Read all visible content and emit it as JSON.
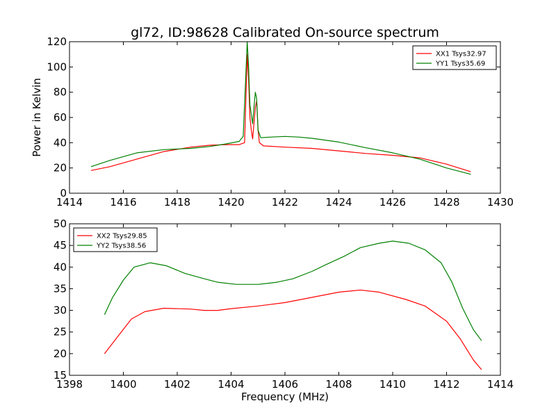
{
  "chart_data": [
    {
      "type": "line",
      "title": "gl72, ID:98628 Calibrated On-source spectrum",
      "xlabel": "",
      "ylabel": "Power in Kelvin",
      "xlim": [
        1414,
        1430
      ],
      "ylim": [
        0,
        120
      ],
      "xticks": [
        "1414",
        "1416",
        "1418",
        "1420",
        "1422",
        "1424",
        "1426",
        "1428",
        "1430"
      ],
      "yticks": [
        "0",
        "20",
        "40",
        "60",
        "80",
        "100",
        "120"
      ],
      "legend_position": "top-right",
      "series": [
        {
          "name": "XX1 Tsys32.97",
          "color": "#ff0000",
          "points": [
            [
              1414.8,
              18
            ],
            [
              1415.5,
              21
            ],
            [
              1416.5,
              27
            ],
            [
              1417.5,
              33
            ],
            [
              1418.5,
              36.5
            ],
            [
              1419.2,
              38
            ],
            [
              1419.8,
              38.5
            ],
            [
              1420.3,
              38.5
            ],
            [
              1420.5,
              40
            ],
            [
              1420.55,
              75
            ],
            [
              1420.6,
              110
            ],
            [
              1420.65,
              90
            ],
            [
              1420.7,
              60
            ],
            [
              1420.75,
              50
            ],
            [
              1420.8,
              43
            ],
            [
              1420.85,
              55
            ],
            [
              1420.9,
              68
            ],
            [
              1420.95,
              73
            ],
            [
              1421.0,
              50
            ],
            [
              1421.05,
              40
            ],
            [
              1421.2,
              37.5
            ],
            [
              1422,
              36.5
            ],
            [
              1423,
              35.5
            ],
            [
              1424,
              33.5
            ],
            [
              1425,
              31.5
            ],
            [
              1426,
              30
            ],
            [
              1427,
              28
            ],
            [
              1428,
              23
            ],
            [
              1428.9,
              17
            ]
          ]
        },
        {
          "name": "YY1 Tsys35.69",
          "color": "#008000",
          "points": [
            [
              1414.8,
              21
            ],
            [
              1415.5,
              26
            ],
            [
              1416.5,
              32
            ],
            [
              1417.5,
              34.5
            ],
            [
              1418.5,
              35.5
            ],
            [
              1419.2,
              37
            ],
            [
              1419.8,
              39
            ],
            [
              1420.3,
              41
            ],
            [
              1420.45,
              45
            ],
            [
              1420.55,
              95
            ],
            [
              1420.6,
              120
            ],
            [
              1420.65,
              100
            ],
            [
              1420.7,
              70
            ],
            [
              1420.8,
              55
            ],
            [
              1420.85,
              68
            ],
            [
              1420.9,
              80
            ],
            [
              1420.95,
              75
            ],
            [
              1421.0,
              50
            ],
            [
              1421.1,
              44
            ],
            [
              1421.5,
              44.5
            ],
            [
              1422,
              45
            ],
            [
              1422.5,
              44.5
            ],
            [
              1423,
              43.5
            ],
            [
              1424,
              40.5
            ],
            [
              1425,
              36
            ],
            [
              1426,
              32
            ],
            [
              1427,
              27
            ],
            [
              1428,
              20
            ],
            [
              1428.9,
              15
            ]
          ]
        }
      ]
    },
    {
      "type": "line",
      "title": "",
      "xlabel": "Frequency (MHz)",
      "ylabel": "",
      "xlim": [
        1398,
        1414
      ],
      "ylim": [
        15,
        50
      ],
      "xticks": [
        "1398",
        "1400",
        "1402",
        "1404",
        "1406",
        "1408",
        "1410",
        "1412",
        "1414"
      ],
      "yticks": [
        "15",
        "20",
        "25",
        "30",
        "35",
        "40",
        "45",
        "50"
      ],
      "legend_position": "top-left",
      "series": [
        {
          "name": "XX2 Tsys29.85",
          "color": "#ff0000",
          "points": [
            [
              1399.3,
              20
            ],
            [
              1399.8,
              24
            ],
            [
              1400.3,
              28
            ],
            [
              1400.8,
              29.7
            ],
            [
              1401.5,
              30.5
            ],
            [
              1402.5,
              30.3
            ],
            [
              1403,
              30
            ],
            [
              1403.5,
              30
            ],
            [
              1404,
              30.4
            ],
            [
              1405,
              31
            ],
            [
              1406,
              31.8
            ],
            [
              1407,
              33
            ],
            [
              1408,
              34.2
            ],
            [
              1408.8,
              34.7
            ],
            [
              1409.5,
              34.2
            ],
            [
              1410.5,
              32.5
            ],
            [
              1411.2,
              31
            ],
            [
              1412,
              27.5
            ],
            [
              1412.5,
              23.5
            ],
            [
              1413,
              18.5
            ],
            [
              1413.3,
              16.3
            ]
          ]
        },
        {
          "name": "YY2 Tsys38.56",
          "color": "#008000",
          "points": [
            [
              1399.3,
              29
            ],
            [
              1399.6,
              33
            ],
            [
              1400.0,
              37
            ],
            [
              1400.4,
              40
            ],
            [
              1401.0,
              41
            ],
            [
              1401.6,
              40.3
            ],
            [
              1402.3,
              38.5
            ],
            [
              1403,
              37.3
            ],
            [
              1403.5,
              36.5
            ],
            [
              1404.2,
              36
            ],
            [
              1405,
              36
            ],
            [
              1405.7,
              36.5
            ],
            [
              1406.3,
              37.3
            ],
            [
              1407,
              39
            ],
            [
              1407.5,
              40.5
            ],
            [
              1408.2,
              42.5
            ],
            [
              1408.8,
              44.5
            ],
            [
              1409.5,
              45.5
            ],
            [
              1410.0,
              46
            ],
            [
              1410.6,
              45.5
            ],
            [
              1411.2,
              44
            ],
            [
              1411.8,
              41
            ],
            [
              1412.2,
              36.5
            ],
            [
              1412.6,
              30.5
            ],
            [
              1413,
              25.5
            ],
            [
              1413.3,
              23
            ]
          ]
        }
      ]
    }
  ]
}
